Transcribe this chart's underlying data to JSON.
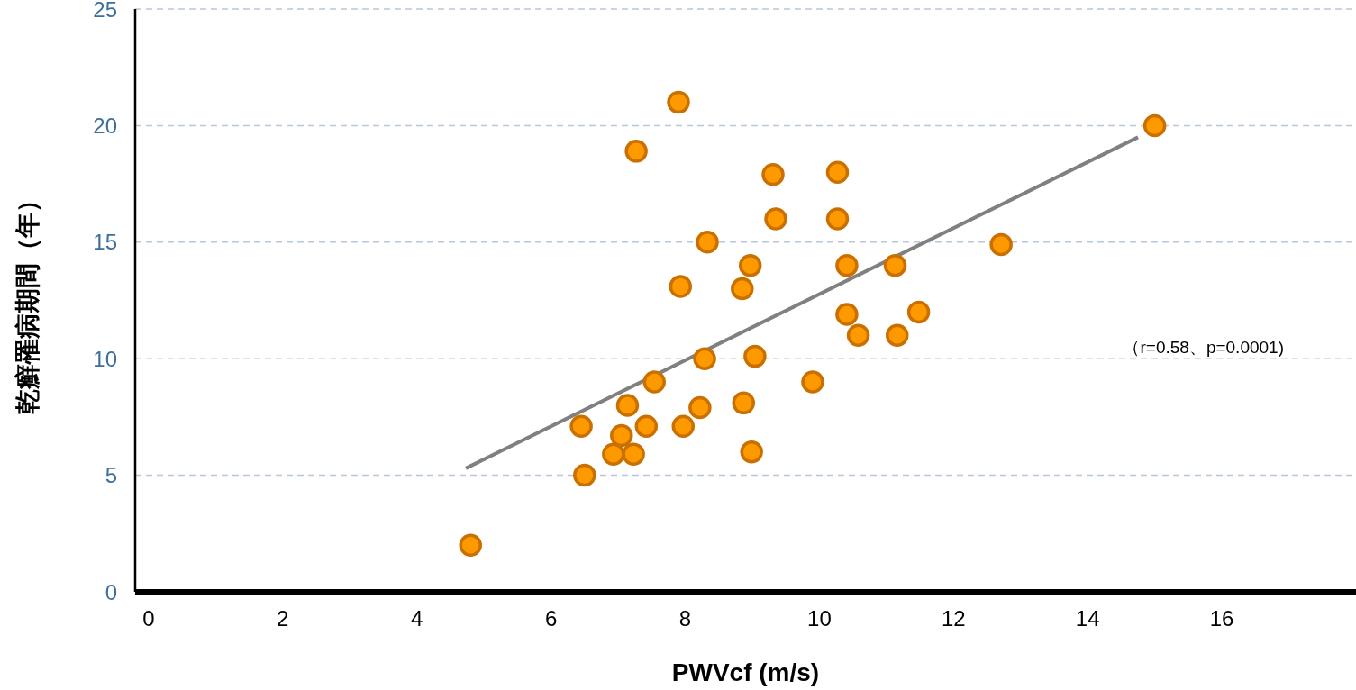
{
  "chart_data": {
    "type": "scatter",
    "xlabel": "PWVcf (m/s)",
    "ylabel": "乾癬罹病期間（年）",
    "xlim": [
      -0.2,
      18
    ],
    "xticks": [
      0,
      2,
      4,
      6,
      8,
      10,
      12,
      14,
      16
    ],
    "ylim": [
      0,
      25
    ],
    "yticks": [
      0,
      5,
      10,
      15,
      20,
      25
    ],
    "grid": "y",
    "series": [
      {
        "marker": "circle",
        "color": "#ff9900",
        "x": [
          4.8,
          6.5,
          6.45,
          6.93,
          7.23,
          7.05,
          7.14,
          7.42,
          7.54,
          7.27,
          7.9,
          7.93,
          7.97,
          8.22,
          8.33,
          8.29,
          8.85,
          8.87,
          8.97,
          8.99,
          9.04,
          9.31,
          9.35,
          9.9,
          10.27,
          10.27,
          10.41,
          10.41,
          10.58,
          11.13,
          11.16,
          11.48,
          12.71,
          15.0
        ],
        "values": [
          2,
          5,
          7.1,
          5.9,
          5.9,
          6.7,
          8,
          7.1,
          9,
          18.9,
          21,
          13.1,
          7.1,
          7.9,
          15,
          10,
          13,
          8.1,
          14,
          6,
          10.1,
          17.9,
          16,
          9,
          18,
          16,
          14,
          11.9,
          11,
          14,
          11,
          12,
          14.9,
          20
        ]
      },
      {
        "type": "line",
        "color": "#808080",
        "x": [
          4.73,
          14.75
        ],
        "values": [
          5.3,
          19.5
        ]
      }
    ],
    "annotations": [
      "（r=0.58、p=0.0001)"
    ]
  }
}
